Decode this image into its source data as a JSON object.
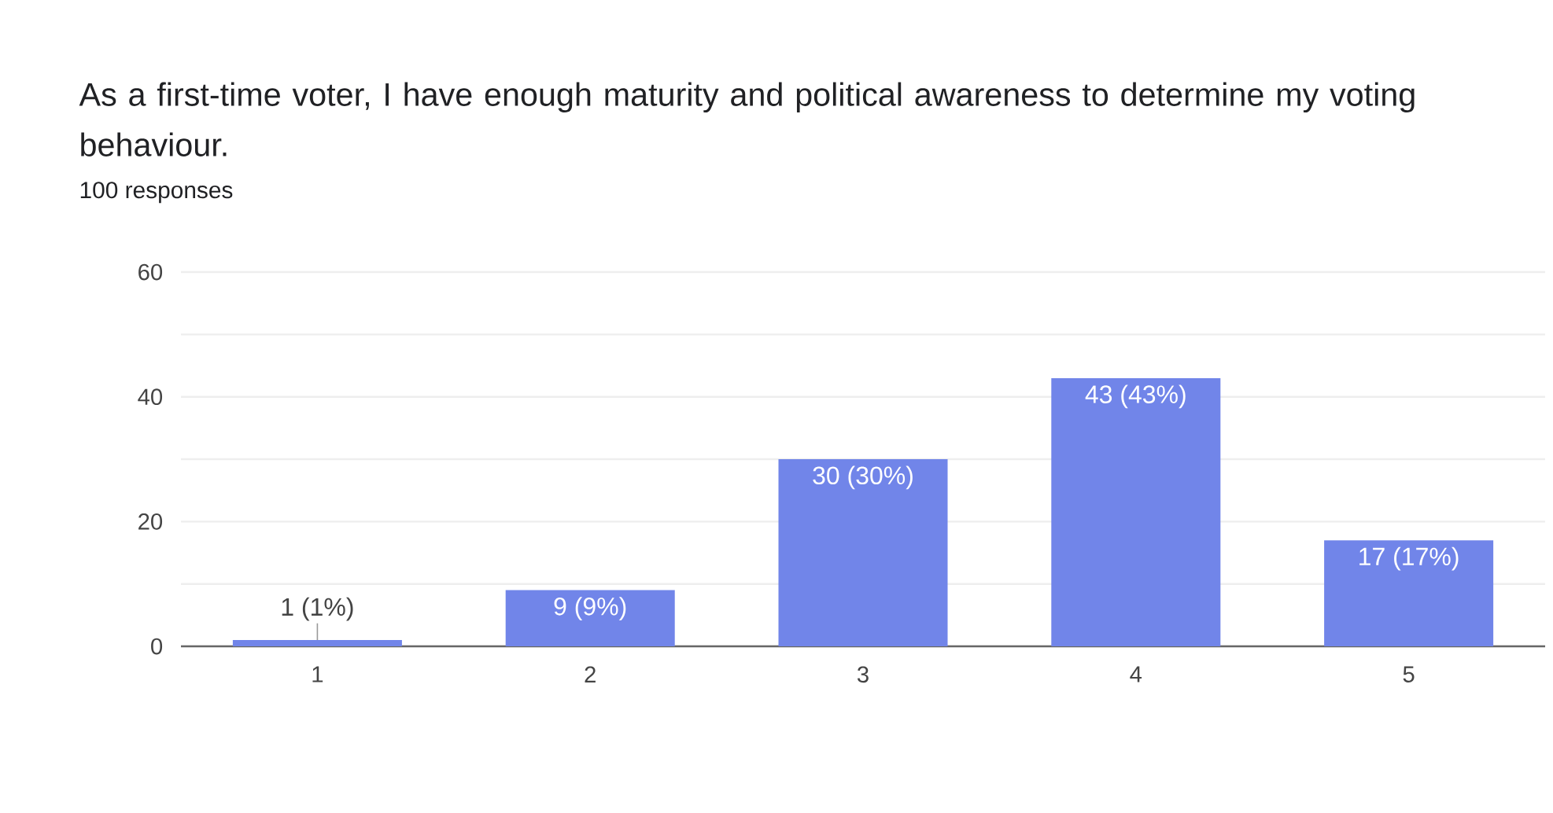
{
  "chart_data": {
    "type": "bar",
    "title": "As a first-time voter, I have enough maturity and political awareness to determine my voting behaviour.",
    "subtitle": "100 responses",
    "categories": [
      "1",
      "2",
      "3",
      "4",
      "5"
    ],
    "values": [
      1,
      9,
      30,
      43,
      17
    ],
    "value_labels": [
      "1 (1%)",
      "9 (9%)",
      "30 (30%)",
      "43 (43%)",
      "17 (17%)"
    ],
    "color": "#7185e9",
    "ylim": [
      0,
      60
    ],
    "yticks": [
      0,
      {
        "value": 10,
        "label": null
      },
      20,
      {
        "value": 30,
        "label": null
      },
      40,
      {
        "value": 50,
        "label": null
      },
      60
    ],
    "grid": "y"
  }
}
